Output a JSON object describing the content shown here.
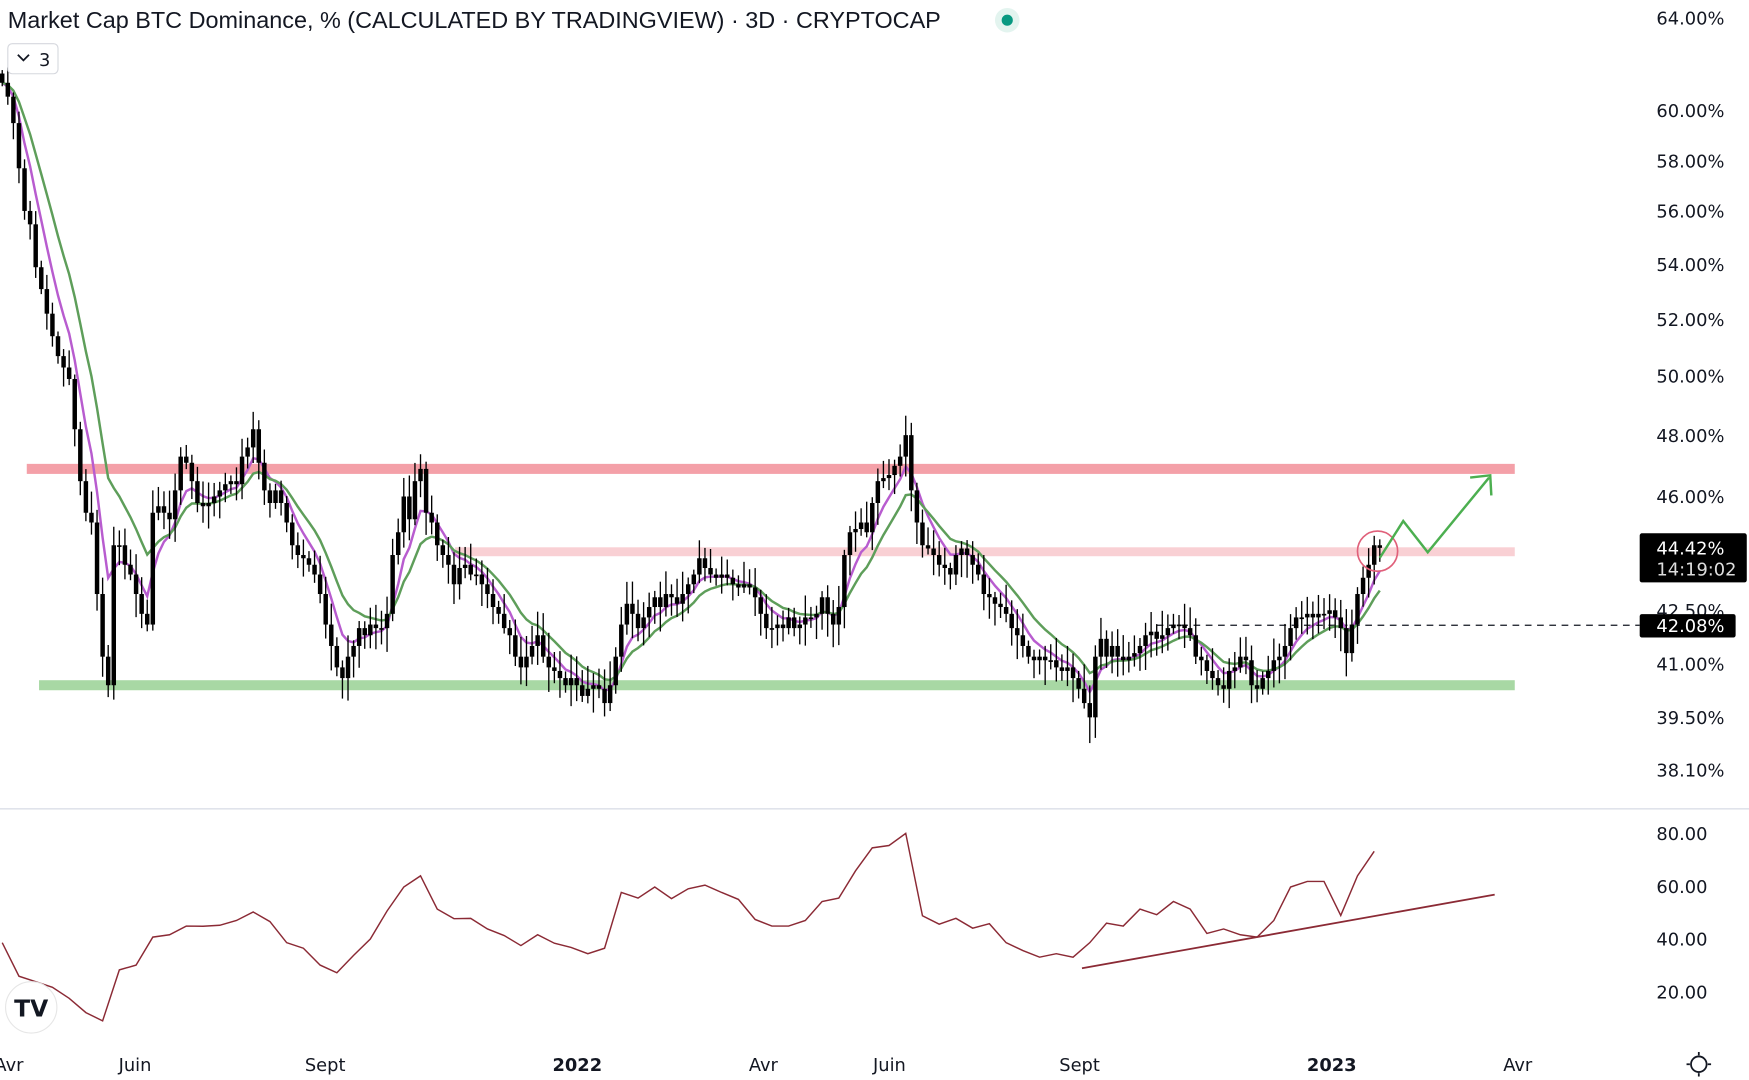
{
  "header": {
    "title": "Market Cap BTC Dominance, % (CALCULATED BY TRADINGVIEW) · 3D · CRYPTOCAP",
    "status_dot_color": "#089981",
    "indicators_toggle": "3",
    "indicators_toggle_icon": "chevron-down-icon"
  },
  "colors": {
    "candle": "#000000",
    "ma_fast": "#b85ccf",
    "ma_slow": "#5e9e5a",
    "resistance_band": "#f4a0a8",
    "mid_band": "#f9d0d4",
    "support_band": "#a8d8a4",
    "projection_arrow": "#4caf50",
    "highlight_circle": "#e0607a",
    "rsi_line": "#8b2a35",
    "rsi_trendline": "#8b2a35"
  },
  "chart_data": [
    {
      "type": "candlestick",
      "title": "Market Cap BTC Dominance, % (CALCULATED BY TRADINGVIEW) · 3D · CRYPTOCAP",
      "yscale": "log",
      "ylim": [
        38.1,
        64.0
      ],
      "y_ticks": [
        "64.00%",
        "60.00%",
        "58.00%",
        "56.00%",
        "54.00%",
        "52.00%",
        "50.00%",
        "48.00%",
        "46.00%",
        "42.50%",
        "41.00%",
        "39.50%",
        "38.10%"
      ],
      "y_tick_values": [
        64,
        60,
        58,
        56,
        54,
        52,
        50,
        48,
        46,
        42.5,
        41,
        39.5,
        38.1
      ],
      "closes": [
        61.2,
        60.6,
        59.5,
        57.7,
        56.0,
        55.5,
        53.9,
        53.1,
        52.2,
        51.4,
        50.7,
        50.3,
        49.9,
        48.2,
        46.5,
        45.5,
        45.2,
        43.0,
        41.2,
        40.4,
        44.5,
        44.5,
        43.9,
        43.6,
        43.0,
        42.4,
        42.1,
        45.5,
        45.7,
        45.5,
        45.3,
        46.2,
        47.3,
        47.1,
        46.5,
        45.8,
        45.7,
        45.8,
        46.0,
        46.2,
        46.4,
        46.5,
        46.4,
        47.3,
        47.6,
        48.2,
        47.1,
        46.2,
        45.8,
        46.2,
        45.8,
        45.2,
        44.5,
        44.2,
        44.1,
        43.9,
        43.6,
        43.0,
        42.1,
        41.5,
        40.9,
        40.6,
        41.2,
        41.5,
        42.0,
        41.8,
        42.1,
        42.0,
        42.0,
        42.4,
        44.2,
        44.9,
        46.0,
        45.3,
        46.5,
        46.9,
        45.5,
        45.2,
        44.5,
        44.2,
        43.9,
        43.3,
        43.8,
        43.9,
        43.6,
        43.6,
        43.3,
        43.0,
        42.6,
        42.4,
        42.0,
        41.8,
        41.2,
        40.9,
        41.2,
        41.5,
        41.8,
        41.2,
        40.9,
        40.8,
        40.6,
        40.4,
        40.6,
        40.4,
        40.1,
        40.3,
        40.4,
        40.3,
        39.9,
        40.4,
        41.2,
        42.1,
        42.7,
        42.4,
        42.0,
        42.3,
        42.6,
        42.9,
        42.6,
        43.0,
        42.9,
        42.7,
        43.0,
        43.3,
        43.6,
        44.1,
        43.8,
        43.6,
        43.5,
        43.6,
        43.5,
        43.3,
        43.2,
        43.3,
        43.2,
        42.9,
        42.4,
        42.0,
        42.0,
        42.1,
        42.0,
        42.3,
        42.0,
        42.1,
        42.3,
        42.3,
        42.4,
        42.9,
        42.4,
        42.1,
        42.6,
        44.2,
        44.9,
        45.0,
        45.2,
        44.9,
        45.8,
        46.5,
        46.6,
        46.7,
        47.0,
        47.3,
        48.0,
        46.2,
        45.2,
        44.5,
        44.4,
        44.2,
        43.9,
        43.8,
        43.6,
        44.2,
        44.4,
        44.2,
        43.9,
        43.6,
        43.0,
        42.9,
        42.7,
        42.6,
        42.4,
        42.0,
        41.8,
        41.5,
        41.2,
        41.1,
        41.2,
        41.1,
        41.1,
        40.9,
        40.8,
        40.9,
        40.6,
        40.3,
        39.9,
        39.5,
        41.2,
        41.7,
        41.2,
        41.5,
        41.2,
        41.1,
        41.2,
        41.3,
        41.5,
        41.8,
        41.9,
        41.7,
        41.8,
        42.0,
        42.1,
        42.1,
        42.0,
        41.8,
        41.2,
        41.1,
        40.8,
        40.6,
        40.4,
        40.3,
        40.8,
        40.9,
        41.2,
        41.1,
        40.4,
        40.3,
        40.6,
        40.8,
        41.1,
        41.2,
        41.5,
        42.0,
        42.3,
        42.3,
        42.4,
        42.3,
        42.4,
        42.4,
        42.5,
        42.3,
        42.0,
        41.3,
        42.1,
        43.0,
        43.5,
        43.9,
        44.5,
        44.42
      ],
      "horizontal_levels": {
        "resistance": 46.9,
        "mid": 44.3,
        "support": 40.4
      },
      "last_price_label": {
        "value": "44.42%",
        "countdown": "14:19:02"
      },
      "marked_level_label": {
        "value": "42.08%",
        "price": 42.08
      },
      "x_ticks": [
        {
          "label": "Avr",
          "date": "2021-04-01",
          "bold": false
        },
        {
          "label": "Juin",
          "date": "2021-06-01",
          "bold": false
        },
        {
          "label": "Sept",
          "date": "2021-09-01",
          "bold": false
        },
        {
          "label": "2022",
          "date": "2022-01-01",
          "bold": true
        },
        {
          "label": "Avr",
          "date": "2022-04-01",
          "bold": false
        },
        {
          "label": "Juin",
          "date": "2022-06-01",
          "bold": false
        },
        {
          "label": "Sept",
          "date": "2022-09-01",
          "bold": false
        },
        {
          "label": "2023",
          "date": "2023-01-01",
          "bold": true
        },
        {
          "label": "Avr",
          "date": "2023-04-01",
          "bold": false
        }
      ]
    },
    {
      "type": "line",
      "ylim": [
        10,
        85
      ],
      "y_ticks": [
        "80.00",
        "60.00",
        "40.00",
        "20.00"
      ],
      "y_tick_values": [
        80,
        60,
        40,
        20
      ],
      "values": [
        38.6,
        25.9,
        23.8,
        21.7,
        17.5,
        12.1,
        9.0,
        28.3,
        30.1,
        40.7,
        41.6,
        44.9,
        44.8,
        45.2,
        47.0,
        50.2,
        46.6,
        38.6,
        36.5,
        30.1,
        27.2,
        33.8,
        40.0,
        50.6,
        59.7,
        63.9,
        51.3,
        47.7,
        47.8,
        43.8,
        41.3,
        37.5,
        41.6,
        38.4,
        36.8,
        34.4,
        36.5,
        57.6,
        55.5,
        59.7,
        55.3,
        59.0,
        60.4,
        57.6,
        55.0,
        47.4,
        44.9,
        44.9,
        47.0,
        54.2,
        55.5,
        65.8,
        74.5,
        75.4,
        80.0,
        48.8,
        45.6,
        47.8,
        44.1,
        45.8,
        38.6,
        35.6,
        33.1,
        34.4,
        33.1,
        38.6,
        46.0,
        44.9,
        51.3,
        49.2,
        54.2,
        51.3,
        42.1,
        43.8,
        41.6,
        40.7,
        47.0,
        59.7,
        61.8,
        61.8,
        48.9,
        63.9,
        73.2
      ],
      "trendline": {
        "from": 28.9,
        "to": 56.8
      }
    }
  ],
  "footer": {
    "logo_text": "TV",
    "settings_icon": "gear-icon"
  }
}
